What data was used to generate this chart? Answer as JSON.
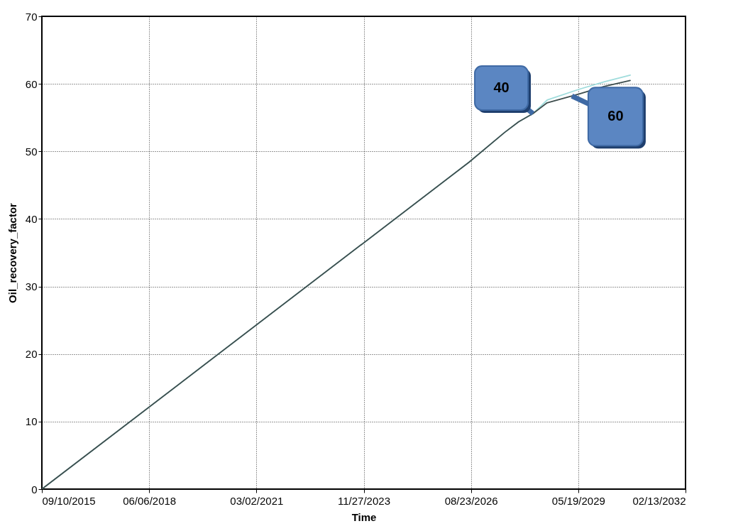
{
  "chart_data": {
    "type": "line",
    "xlabel": "Time",
    "ylabel": "Oil_recovery_factor",
    "series": [
      {
        "color": "#9fdcdc",
        "x": [
          "2015-09-10",
          "2026-08-05",
          "2027-07-02",
          "2027-11-11",
          "2028-03-23",
          "2028-08-02",
          "2029-05-27",
          "2030-01-13",
          "2030-09-15"
        ],
        "values": [
          0,
          48.4,
          52.8,
          54.4,
          55.6,
          57.6,
          59.2,
          60.3,
          61.3
        ]
      },
      {
        "color": "#3d4d4d",
        "x": [
          "2015-09-10",
          "2026-08-05",
          "2027-07-02",
          "2027-11-11",
          "2028-03-23",
          "2028-08-02",
          "2029-05-27",
          "2030-01-13",
          "2030-09-15"
        ],
        "values": [
          0,
          48.4,
          52.8,
          54.4,
          55.6,
          57.2,
          58.5,
          59.6,
          60.5
        ]
      }
    ],
    "annotations": [
      {
        "text": "40",
        "x": "2028-03-23",
        "y": 55.6
      },
      {
        "text": "60",
        "x": "2029-03-21",
        "y": 58.2
      }
    ],
    "xlim": [
      "2015-09-10",
      "2032-02-13"
    ],
    "xticks": [
      {
        "value": "2015-09-10",
        "label": "09/10/2015"
      },
      {
        "value": "2018-06-06",
        "label": "06/06/2018"
      },
      {
        "value": "2021-03-02",
        "label": "03/02/2021"
      },
      {
        "value": "2023-11-27",
        "label": "11/27/2023"
      },
      {
        "value": "2026-08-23",
        "label": "08/23/2026"
      },
      {
        "value": "2029-05-19",
        "label": "05/19/2029"
      },
      {
        "value": "2032-02-13",
        "label": "02/13/2032"
      }
    ],
    "ylim": [
      0,
      70
    ],
    "yticks": [
      0,
      10,
      20,
      30,
      40,
      50,
      60,
      70
    ],
    "grid": true,
    "marker": "none",
    "line_style": "solid"
  }
}
